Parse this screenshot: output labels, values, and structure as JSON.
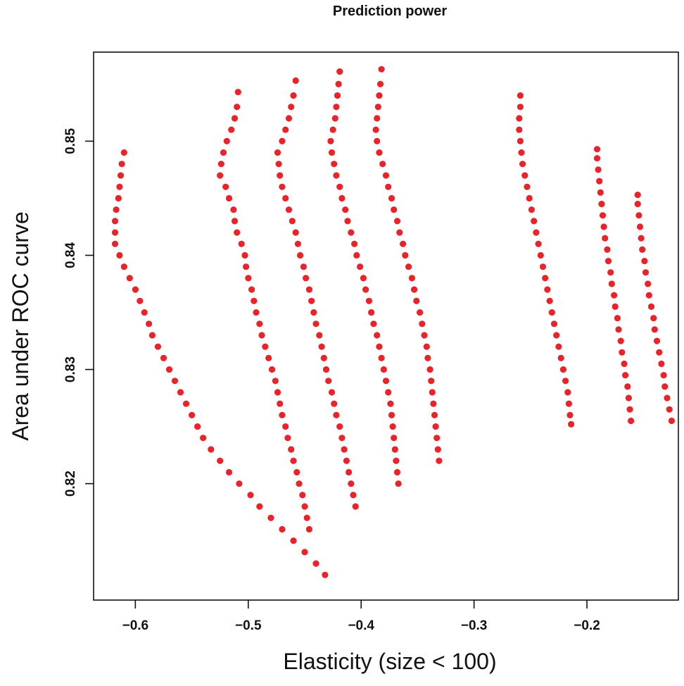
{
  "colors": {
    "point": "#e8232a"
  },
  "chart_data": {
    "type": "scatter",
    "title": "Prediction power",
    "xlabel": "Elasticity (size < 100)",
    "ylabel": "Area under ROC curve",
    "xlim": [
      -0.637,
      -0.119
    ],
    "ylim": [
      0.8098,
      0.8578
    ],
    "xticks": [
      -0.6,
      -0.5,
      -0.4,
      -0.3,
      -0.2
    ],
    "xtick_labels": [
      "−0.6",
      "−0.5",
      "−0.4",
      "−0.3",
      "−0.2"
    ],
    "yticks": [
      0.82,
      0.83,
      0.84,
      0.85
    ],
    "ytick_labels": [
      "0.82",
      "0.83",
      "0.84",
      "0.85"
    ],
    "grid": false,
    "legend": "none",
    "series": [
      {
        "values": [
          [
            -0.61,
            0.849
          ],
          [
            -0.612,
            0.848
          ],
          [
            -0.613,
            0.847
          ],
          [
            -0.614,
            0.846
          ],
          [
            -0.615,
            0.845
          ],
          [
            -0.617,
            0.844
          ],
          [
            -0.618,
            0.843
          ],
          [
            -0.618,
            0.842
          ],
          [
            -0.618,
            0.841
          ],
          [
            -0.614,
            0.84
          ],
          [
            -0.61,
            0.839
          ],
          [
            -0.605,
            0.838
          ],
          [
            -0.6,
            0.837
          ],
          [
            -0.596,
            0.836
          ],
          [
            -0.592,
            0.835
          ],
          [
            -0.588,
            0.834
          ],
          [
            -0.585,
            0.833
          ],
          [
            -0.58,
            0.832
          ],
          [
            -0.575,
            0.831
          ],
          [
            -0.57,
            0.83
          ],
          [
            -0.565,
            0.829
          ],
          [
            -0.56,
            0.828
          ],
          [
            -0.555,
            0.827
          ],
          [
            -0.55,
            0.826
          ],
          [
            -0.545,
            0.825
          ],
          [
            -0.54,
            0.824
          ],
          [
            -0.533,
            0.823
          ],
          [
            -0.525,
            0.822
          ],
          [
            -0.517,
            0.821
          ],
          [
            -0.508,
            0.82
          ],
          [
            -0.498,
            0.819
          ],
          [
            -0.49,
            0.818
          ],
          [
            -0.48,
            0.817
          ],
          [
            -0.47,
            0.816
          ],
          [
            -0.46,
            0.815
          ],
          [
            -0.45,
            0.814
          ],
          [
            -0.44,
            0.813
          ],
          [
            -0.432,
            0.812
          ]
        ]
      },
      {
        "values": [
          [
            -0.509,
            0.8543
          ],
          [
            -0.51,
            0.853
          ],
          [
            -0.512,
            0.852
          ],
          [
            -0.515,
            0.851
          ],
          [
            -0.519,
            0.85
          ],
          [
            -0.522,
            0.849
          ],
          [
            -0.524,
            0.848
          ],
          [
            -0.525,
            0.847
          ],
          [
            -0.52,
            0.846
          ],
          [
            -0.517,
            0.845
          ],
          [
            -0.513,
            0.844
          ],
          [
            -0.512,
            0.843
          ],
          [
            -0.51,
            0.842
          ],
          [
            -0.506,
            0.841
          ],
          [
            -0.503,
            0.84
          ],
          [
            -0.502,
            0.839
          ],
          [
            -0.5,
            0.838
          ],
          [
            -0.497,
            0.837
          ],
          [
            -0.495,
            0.836
          ],
          [
            -0.493,
            0.835
          ],
          [
            -0.49,
            0.834
          ],
          [
            -0.488,
            0.833
          ],
          [
            -0.485,
            0.832
          ],
          [
            -0.482,
            0.831
          ],
          [
            -0.479,
            0.83
          ],
          [
            -0.476,
            0.829
          ],
          [
            -0.474,
            0.828
          ],
          [
            -0.472,
            0.827
          ],
          [
            -0.47,
            0.826
          ],
          [
            -0.467,
            0.825
          ],
          [
            -0.465,
            0.824
          ],
          [
            -0.462,
            0.823
          ],
          [
            -0.46,
            0.822
          ],
          [
            -0.457,
            0.821
          ],
          [
            -0.455,
            0.82
          ],
          [
            -0.452,
            0.819
          ],
          [
            -0.45,
            0.818
          ],
          [
            -0.448,
            0.817
          ],
          [
            -0.446,
            0.816
          ]
        ]
      },
      {
        "values": [
          [
            -0.458,
            0.8553
          ],
          [
            -0.46,
            0.854
          ],
          [
            -0.462,
            0.853
          ],
          [
            -0.464,
            0.852
          ],
          [
            -0.467,
            0.851
          ],
          [
            -0.47,
            0.85
          ],
          [
            -0.474,
            0.849
          ],
          [
            -0.473,
            0.848
          ],
          [
            -0.472,
            0.847
          ],
          [
            -0.47,
            0.846
          ],
          [
            -0.467,
            0.845
          ],
          [
            -0.464,
            0.844
          ],
          [
            -0.461,
            0.843
          ],
          [
            -0.458,
            0.842
          ],
          [
            -0.456,
            0.841
          ],
          [
            -0.454,
            0.84
          ],
          [
            -0.451,
            0.839
          ],
          [
            -0.449,
            0.838
          ],
          [
            -0.446,
            0.837
          ],
          [
            -0.444,
            0.836
          ],
          [
            -0.442,
            0.835
          ],
          [
            -0.44,
            0.834
          ],
          [
            -0.437,
            0.833
          ],
          [
            -0.435,
            0.832
          ],
          [
            -0.433,
            0.831
          ],
          [
            -0.431,
            0.83
          ],
          [
            -0.429,
            0.829
          ],
          [
            -0.426,
            0.828
          ],
          [
            -0.424,
            0.827
          ],
          [
            -0.422,
            0.826
          ],
          [
            -0.419,
            0.825
          ],
          [
            -0.417,
            0.824
          ],
          [
            -0.415,
            0.823
          ],
          [
            -0.413,
            0.822
          ],
          [
            -0.411,
            0.821
          ],
          [
            -0.409,
            0.82
          ],
          [
            -0.407,
            0.819
          ],
          [
            -0.405,
            0.818
          ]
        ]
      },
      {
        "values": [
          [
            -0.419,
            0.8561
          ],
          [
            -0.42,
            0.855
          ],
          [
            -0.421,
            0.854
          ],
          [
            -0.422,
            0.853
          ],
          [
            -0.423,
            0.852
          ],
          [
            -0.425,
            0.851
          ],
          [
            -0.427,
            0.85
          ],
          [
            -0.426,
            0.849
          ],
          [
            -0.424,
            0.848
          ],
          [
            -0.422,
            0.847
          ],
          [
            -0.419,
            0.846
          ],
          [
            -0.417,
            0.845
          ],
          [
            -0.414,
            0.844
          ],
          [
            -0.412,
            0.843
          ],
          [
            -0.409,
            0.842
          ],
          [
            -0.406,
            0.841
          ],
          [
            -0.404,
            0.84
          ],
          [
            -0.401,
            0.839
          ],
          [
            -0.398,
            0.838
          ],
          [
            -0.396,
            0.837
          ],
          [
            -0.393,
            0.836
          ],
          [
            -0.391,
            0.835
          ],
          [
            -0.389,
            0.834
          ],
          [
            -0.386,
            0.833
          ],
          [
            -0.384,
            0.832
          ],
          [
            -0.382,
            0.831
          ],
          [
            -0.38,
            0.83
          ],
          [
            -0.378,
            0.829
          ],
          [
            -0.376,
            0.828
          ],
          [
            -0.374,
            0.827
          ],
          [
            -0.373,
            0.826
          ],
          [
            -0.372,
            0.825
          ],
          [
            -0.371,
            0.824
          ],
          [
            -0.37,
            0.823
          ],
          [
            -0.369,
            0.822
          ],
          [
            -0.368,
            0.821
          ],
          [
            -0.367,
            0.82
          ]
        ]
      },
      {
        "values": [
          [
            -0.382,
            0.8563
          ],
          [
            -0.383,
            0.855
          ],
          [
            -0.384,
            0.854
          ],
          [
            -0.385,
            0.853
          ],
          [
            -0.386,
            0.852
          ],
          [
            -0.387,
            0.851
          ],
          [
            -0.386,
            0.85
          ],
          [
            -0.384,
            0.849
          ],
          [
            -0.381,
            0.848
          ],
          [
            -0.378,
            0.847
          ],
          [
            -0.376,
            0.846
          ],
          [
            -0.373,
            0.845
          ],
          [
            -0.371,
            0.844
          ],
          [
            -0.368,
            0.843
          ],
          [
            -0.366,
            0.842
          ],
          [
            -0.363,
            0.841
          ],
          [
            -0.361,
            0.84
          ],
          [
            -0.358,
            0.839
          ],
          [
            -0.355,
            0.838
          ],
          [
            -0.353,
            0.837
          ],
          [
            -0.351,
            0.836
          ],
          [
            -0.348,
            0.835
          ],
          [
            -0.346,
            0.834
          ],
          [
            -0.344,
            0.833
          ],
          [
            -0.342,
            0.832
          ],
          [
            -0.341,
            0.831
          ],
          [
            -0.339,
            0.83
          ],
          [
            -0.338,
            0.829
          ],
          [
            -0.337,
            0.828
          ],
          [
            -0.336,
            0.827
          ],
          [
            -0.335,
            0.826
          ],
          [
            -0.334,
            0.825
          ],
          [
            -0.333,
            0.824
          ],
          [
            -0.332,
            0.823
          ],
          [
            -0.331,
            0.822
          ]
        ]
      },
      {
        "values": [
          [
            -0.259,
            0.854
          ],
          [
            -0.259,
            0.853
          ],
          [
            -0.26,
            0.852
          ],
          [
            -0.26,
            0.851
          ],
          [
            -0.259,
            0.85
          ],
          [
            -0.258,
            0.849
          ],
          [
            -0.257,
            0.848
          ],
          [
            -0.255,
            0.847
          ],
          [
            -0.253,
            0.846
          ],
          [
            -0.251,
            0.845
          ],
          [
            -0.249,
            0.844
          ],
          [
            -0.247,
            0.843
          ],
          [
            -0.245,
            0.842
          ],
          [
            -0.243,
            0.841
          ],
          [
            -0.241,
            0.84
          ],
          [
            -0.239,
            0.839
          ],
          [
            -0.237,
            0.838
          ],
          [
            -0.235,
            0.837
          ],
          [
            -0.233,
            0.836
          ],
          [
            -0.231,
            0.835
          ],
          [
            -0.229,
            0.834
          ],
          [
            -0.227,
            0.833
          ],
          [
            -0.225,
            0.832
          ],
          [
            -0.223,
            0.831
          ],
          [
            -0.221,
            0.83
          ],
          [
            -0.219,
            0.829
          ],
          [
            -0.217,
            0.828
          ],
          [
            -0.216,
            0.827
          ],
          [
            -0.215,
            0.826
          ],
          [
            -0.214,
            0.8252
          ]
        ]
      },
      {
        "values": [
          [
            -0.191,
            0.8493
          ],
          [
            -0.191,
            0.8485
          ],
          [
            -0.19,
            0.8475
          ],
          [
            -0.189,
            0.8465
          ],
          [
            -0.188,
            0.8455
          ],
          [
            -0.187,
            0.8445
          ],
          [
            -0.186,
            0.8435
          ],
          [
            -0.185,
            0.8425
          ],
          [
            -0.184,
            0.8415
          ],
          [
            -0.182,
            0.8405
          ],
          [
            -0.181,
            0.8395
          ],
          [
            -0.179,
            0.8385
          ],
          [
            -0.178,
            0.8375
          ],
          [
            -0.176,
            0.8365
          ],
          [
            -0.175,
            0.8355
          ],
          [
            -0.173,
            0.8345
          ],
          [
            -0.172,
            0.8335
          ],
          [
            -0.17,
            0.8325
          ],
          [
            -0.169,
            0.8315
          ],
          [
            -0.167,
            0.8305
          ],
          [
            -0.166,
            0.8295
          ],
          [
            -0.164,
            0.8285
          ],
          [
            -0.163,
            0.8275
          ],
          [
            -0.162,
            0.8265
          ],
          [
            -0.161,
            0.8255
          ]
        ]
      },
      {
        "values": [
          [
            -0.155,
            0.8453
          ],
          [
            -0.155,
            0.8445
          ],
          [
            -0.154,
            0.8435
          ],
          [
            -0.153,
            0.8425
          ],
          [
            -0.152,
            0.8415
          ],
          [
            -0.151,
            0.8405
          ],
          [
            -0.149,
            0.8395
          ],
          [
            -0.148,
            0.8385
          ],
          [
            -0.146,
            0.8375
          ],
          [
            -0.145,
            0.8365
          ],
          [
            -0.143,
            0.8355
          ],
          [
            -0.141,
            0.8345
          ],
          [
            -0.14,
            0.8335
          ],
          [
            -0.138,
            0.8325
          ],
          [
            -0.136,
            0.8315
          ],
          [
            -0.134,
            0.8305
          ],
          [
            -0.132,
            0.8295
          ],
          [
            -0.131,
            0.8285
          ],
          [
            -0.129,
            0.8275
          ],
          [
            -0.127,
            0.8265
          ],
          [
            -0.125,
            0.8255
          ]
        ]
      }
    ]
  }
}
